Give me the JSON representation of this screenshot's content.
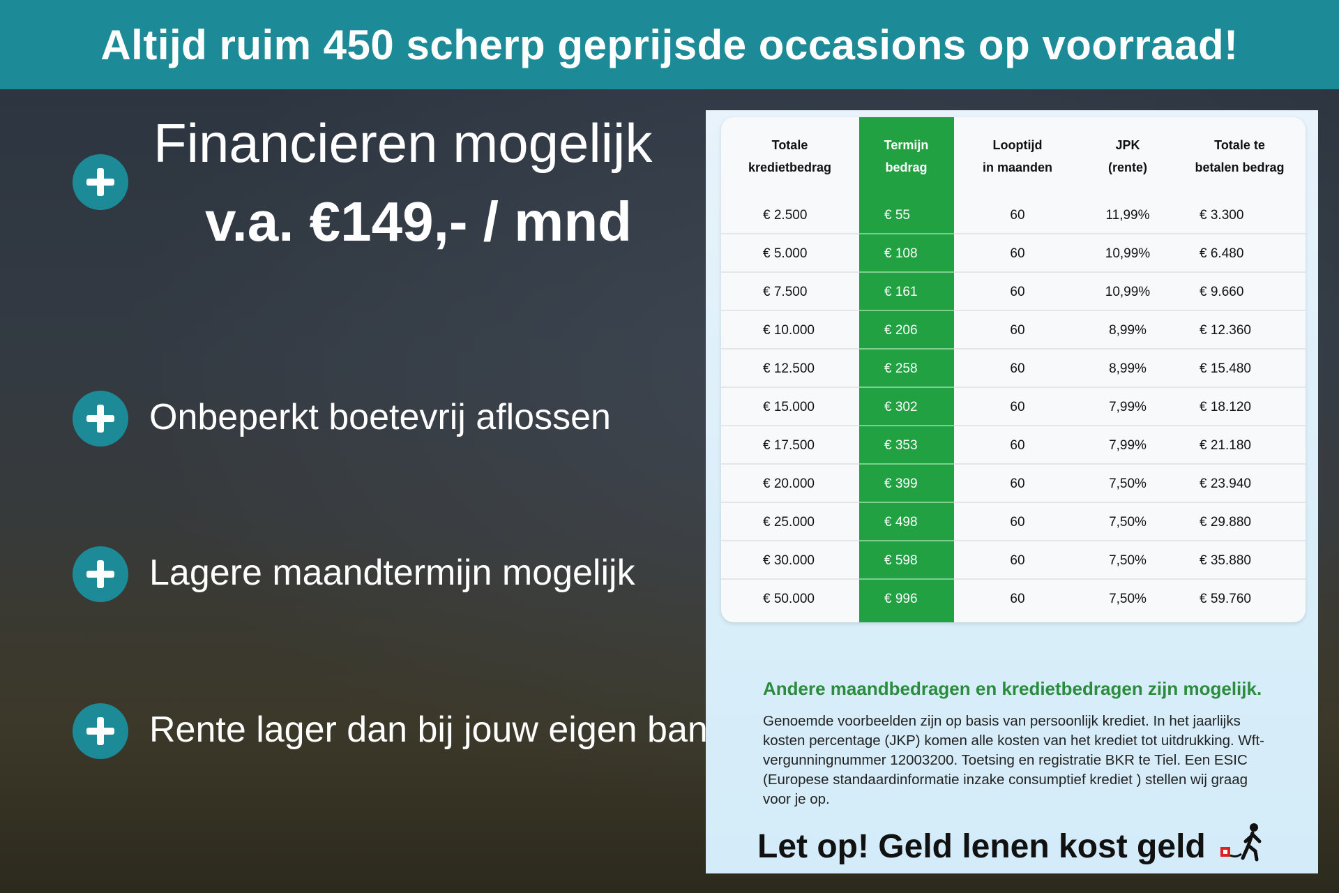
{
  "header": {
    "title": "Altijd ruim 450 scherp geprijsde occasions op voorraad!"
  },
  "left": {
    "financing_title": "Financieren mogelijk",
    "financing_price": "v.a. €149,- / mnd",
    "bullets": [
      "Onbeperkt boetevrij aflossen",
      "Lagere maandtermijn mogelijk",
      "Rente lager dan bij jouw eigen bank"
    ]
  },
  "table": {
    "headers": [
      [
        "Totale",
        "kredietbedrag"
      ],
      [
        "Termijn",
        "bedrag"
      ],
      [
        "Looptijd",
        "in maanden"
      ],
      [
        "JPK",
        "(rente)"
      ],
      [
        "Totale te",
        "betalen bedrag"
      ]
    ],
    "rows": [
      [
        "€ 2.500",
        "€ 55",
        "60",
        "11,99%",
        "€ 3.300"
      ],
      [
        "€ 5.000",
        "€ 108",
        "60",
        "10,99%",
        "€ 6.480"
      ],
      [
        "€ 7.500",
        "€ 161",
        "60",
        "10,99%",
        "€ 9.660"
      ],
      [
        "€ 10.000",
        "€ 206",
        "60",
        "8,99%",
        "€ 12.360"
      ],
      [
        "€ 12.500",
        "€ 258",
        "60",
        "8,99%",
        "€ 15.480"
      ],
      [
        "€ 15.000",
        "€ 302",
        "60",
        "7,99%",
        "€ 18.120"
      ],
      [
        "€ 17.500",
        "€ 353",
        "60",
        "7,99%",
        "€ 21.180"
      ],
      [
        "€ 20.000",
        "€ 399",
        "60",
        "7,50%",
        "€ 23.940"
      ],
      [
        "€ 25.000",
        "€ 498",
        "60",
        "7,50%",
        "€ 29.880"
      ],
      [
        "€ 30.000",
        "€ 598",
        "60",
        "7,50%",
        "€ 35.880"
      ],
      [
        "€ 50.000",
        "€ 996",
        "60",
        "7,50%",
        "€ 59.760"
      ]
    ]
  },
  "notes": {
    "title": "Andere maandbedragen en kredietbedragen zijn mogelijk.",
    "body": "Genoemde voorbeelden zijn op basis van persoonlijk krediet. In het jaarlijks kosten percentage (JKP) komen alle kosten van het krediet tot uitdrukking. Wft-vergunningnummer 12003200. Toetsing en registratie BKR te Tiel. Een ESIC (Europese standaardinformatie inzake consumptief krediet ) stellen wij graag voor je op.",
    "warning": "Let op! Geld lenen kost geld"
  },
  "colors": {
    "teal": "#1c8a97",
    "green": "#22a143",
    "note_green": "#2a8c3c"
  },
  "icons": [
    "plus-circle-icon",
    "walking-person-icon"
  ]
}
